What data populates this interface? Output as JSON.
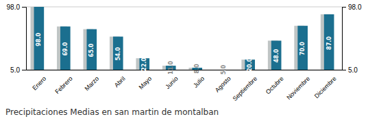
{
  "chart_data": {
    "type": "bar",
    "title": "Precipitaciones Medias en san martin de montalban",
    "categories": [
      "Enero",
      "Febrero",
      "Marzo",
      "Abril",
      "Mayo",
      "Junio",
      "Julio",
      "Agosto",
      "Septiembre",
      "Octubre",
      "Noviembre",
      "Diciembre"
    ],
    "values": [
      98.0,
      69.0,
      65.0,
      54.0,
      22.0,
      11.0,
      8.0,
      5.0,
      20.0,
      48.0,
      70.0,
      87.0
    ],
    "value_labels": [
      "98.0",
      "69.0",
      "65.0",
      "54.0",
      "22.0",
      "11.0",
      "8.0",
      "5.0",
      "20.0",
      "48.0",
      "70.0",
      "87.0"
    ],
    "data_labels": true,
    "color": "#1b6f8f",
    "ylim": [
      5.0,
      98.0
    ],
    "yticks": [
      {
        "value": 5.0,
        "label": "5.0"
      },
      {
        "value": 98.0,
        "label": "98.0"
      }
    ],
    "y2lim": [
      5.0,
      98.0
    ],
    "y2ticks": [
      {
        "value": 5.0,
        "label": "5.0"
      },
      {
        "value": 98.0,
        "label": "98.0"
      }
    ],
    "grid": true
  }
}
